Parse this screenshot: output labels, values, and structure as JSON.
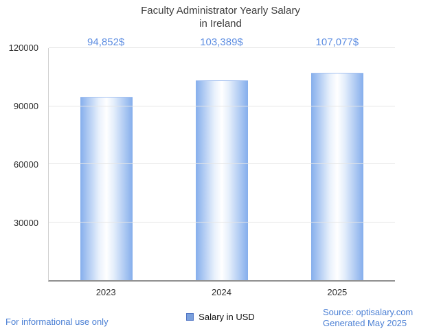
{
  "header": {
    "line1": "Faculty Administrator Yearly Salary",
    "line2": "in Ireland"
  },
  "chart_data": {
    "type": "bar",
    "title": "Faculty Administrator Yearly Salary in Ireland",
    "categories": [
      "2023",
      "2024",
      "2025"
    ],
    "values": [
      94852,
      103389,
      107077
    ],
    "value_labels": [
      "94,852$",
      "103,389$",
      "107,077$"
    ],
    "xlabel": "",
    "ylabel": "",
    "ylim": [
      0,
      120000
    ],
    "yticks": [
      30000,
      60000,
      90000,
      120000
    ],
    "grid": true,
    "legend_position": "bottom",
    "legend": [
      {
        "label": "Salary in USD",
        "color": "#7aa0dd"
      }
    ],
    "bar_gradient": [
      "#85aeec",
      "#ffffff",
      "#85aeec"
    ]
  },
  "footer": {
    "disclaimer": "For informational use only",
    "source": "Source: optisalary.com",
    "generated": "Generated May 2025"
  },
  "colors": {
    "accent_value_label": "#5e8ee2",
    "link": "#4a7fd4",
    "title": "#3d3d3d",
    "gridline": "#e5e5e5"
  }
}
